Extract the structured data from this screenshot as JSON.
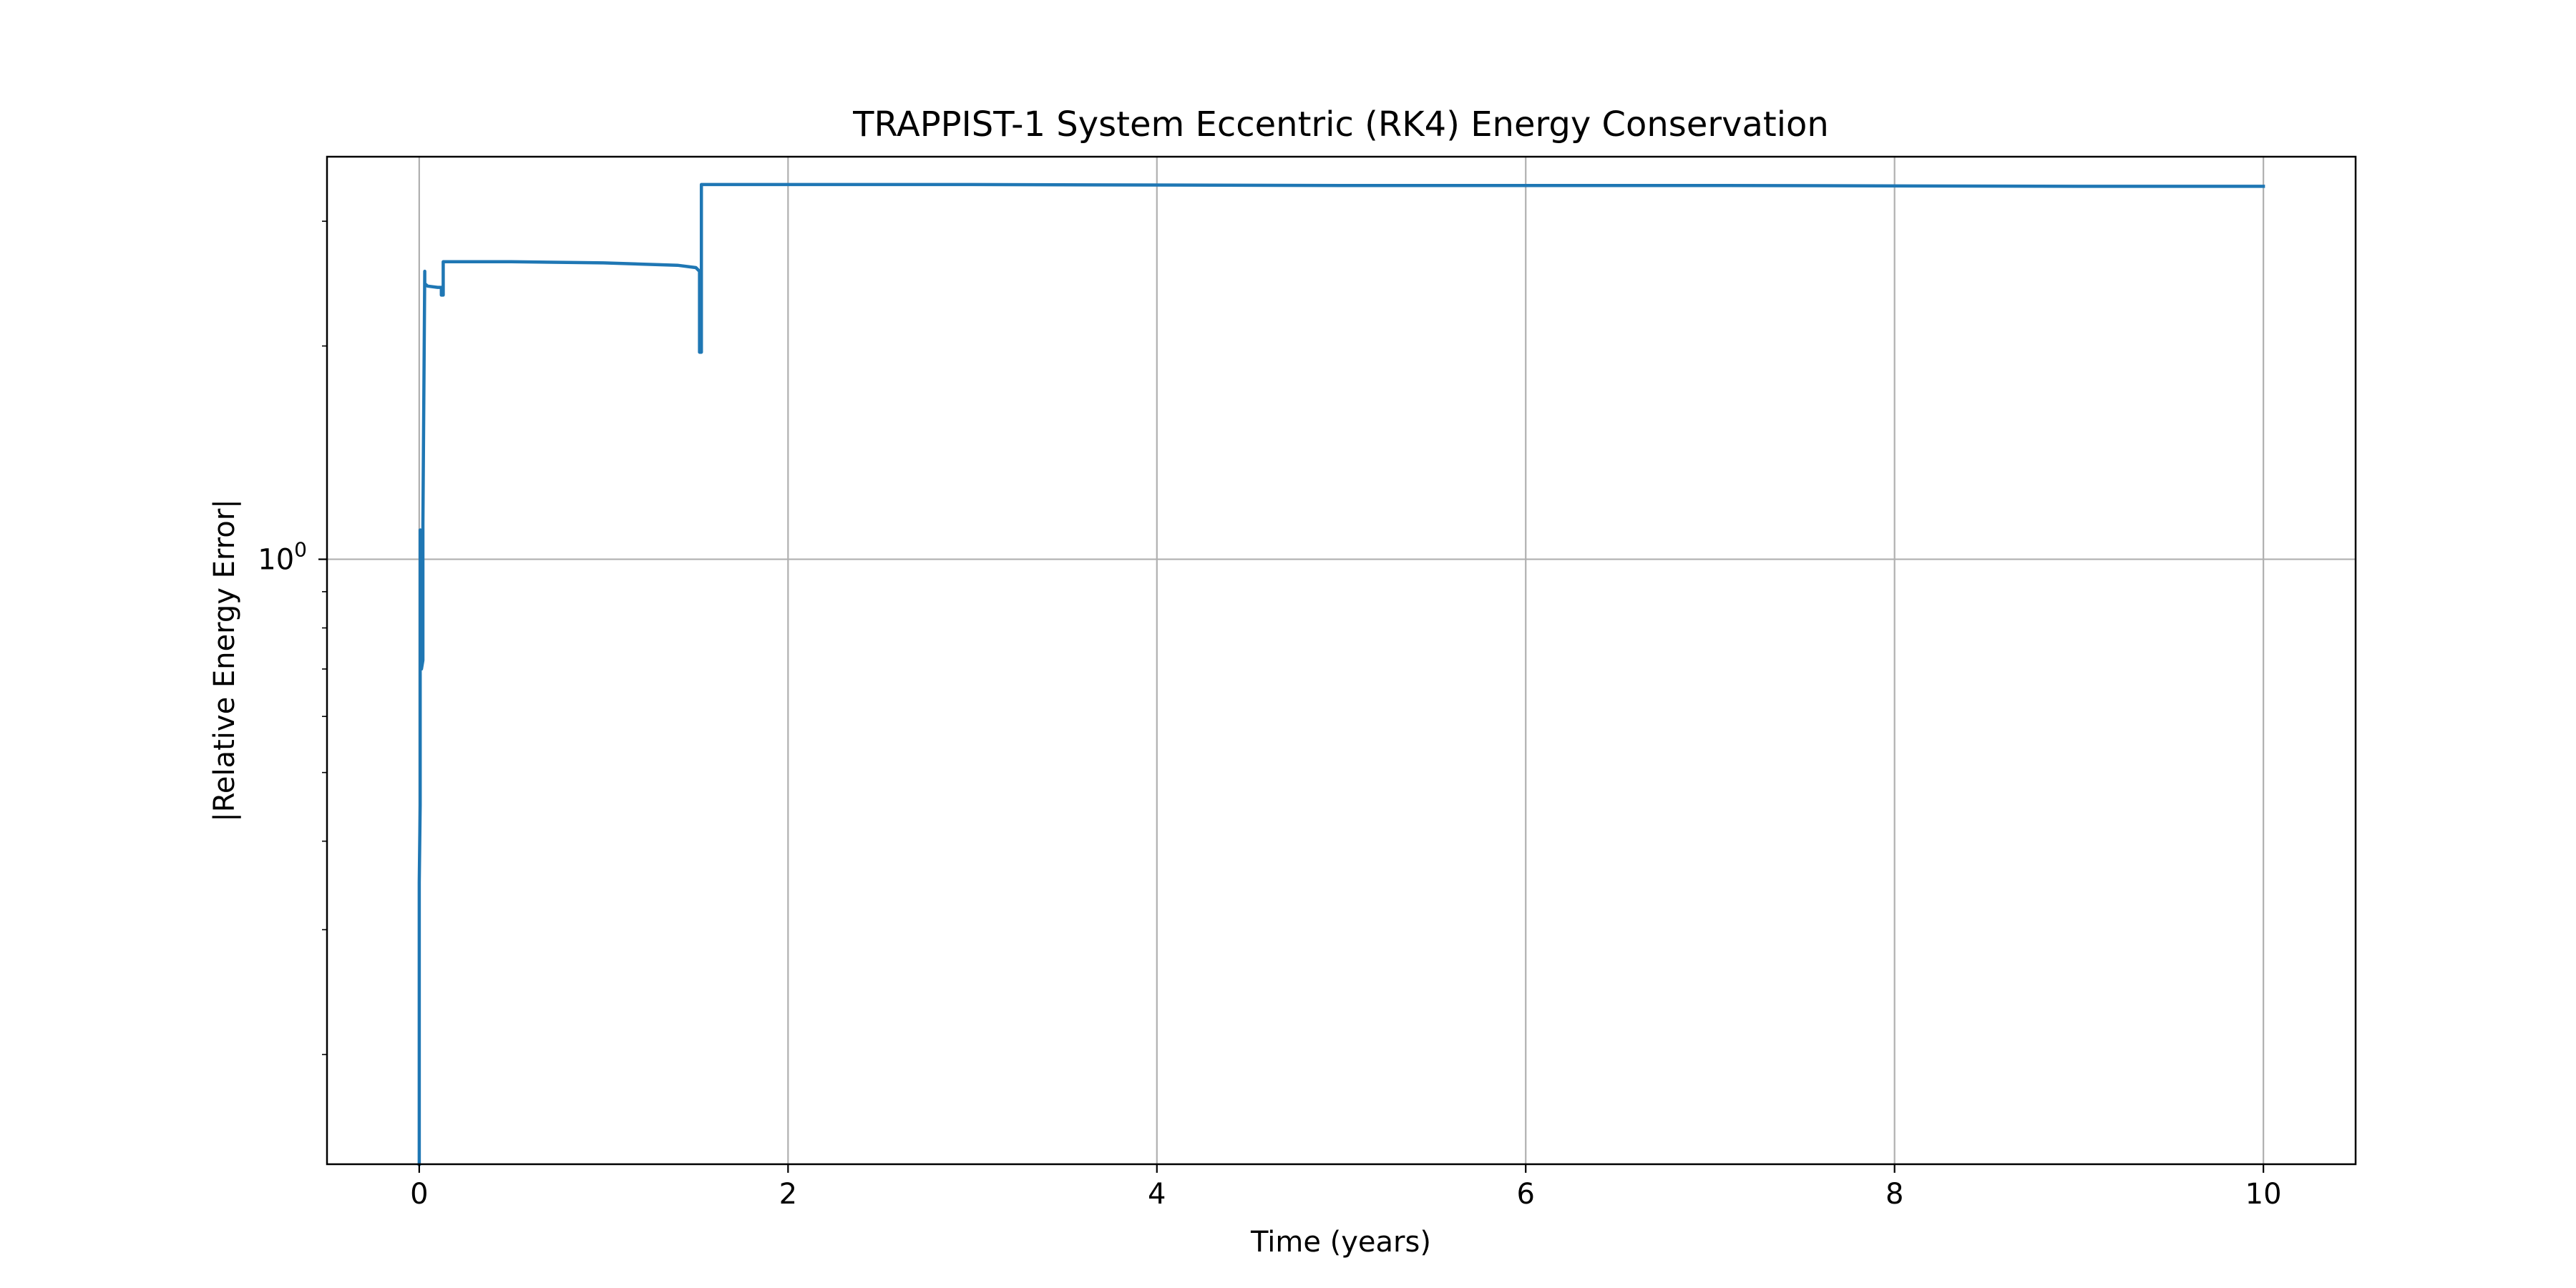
{
  "chart_data": {
    "type": "line",
    "title": "TRAPPIST-1 System Eccentric (RK4) Energy Conservation",
    "xlabel": "Time (years)",
    "ylabel": "|Relative Energy Error|",
    "xlim": [
      -0.5,
      10.5
    ],
    "ylim": [
      0.14,
      3.7
    ],
    "yscale": "log",
    "grid": true,
    "legend": "none",
    "x_ticks": [
      {
        "value": 0,
        "label": "0"
      },
      {
        "value": 2,
        "label": "2"
      },
      {
        "value": 4,
        "label": "4"
      },
      {
        "value": 6,
        "label": "6"
      },
      {
        "value": 8,
        "label": "8"
      },
      {
        "value": 10,
        "label": "10"
      }
    ],
    "y_ticks": [
      {
        "value": 1,
        "label": "10",
        "exponent": "0"
      }
    ],
    "y_minor_ticks": [
      0.2,
      0.3,
      0.4,
      0.5,
      0.6,
      0.7,
      0.8,
      0.9,
      2,
      3
    ],
    "series": [
      {
        "color": "#1f77b4",
        "x": [
          0.0,
          0.0,
          0.005,
          0.005,
          0.012,
          0.012,
          0.02,
          0.02,
          0.03,
          0.03,
          0.045,
          0.1,
          0.12,
          0.12,
          0.13,
          0.13,
          0.5,
          1.0,
          1.4,
          1.5,
          1.52,
          1.52,
          1.53,
          1.53,
          1.6,
          3.0,
          5.0,
          7.0,
          9.0,
          10.0
        ],
        "y": [
          0.14,
          0.35,
          0.45,
          1.1,
          1.02,
          0.7,
          0.72,
          1.12,
          2.55,
          2.45,
          2.43,
          2.42,
          2.42,
          2.36,
          2.36,
          2.63,
          2.63,
          2.62,
          2.6,
          2.58,
          2.55,
          1.96,
          1.96,
          3.38,
          3.38,
          3.38,
          3.37,
          3.37,
          3.36,
          3.36
        ]
      }
    ]
  }
}
